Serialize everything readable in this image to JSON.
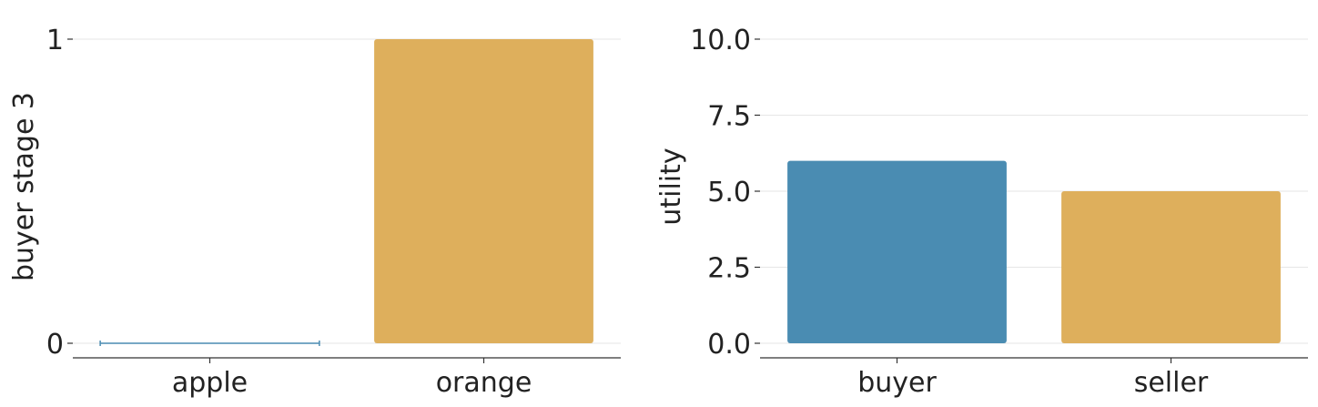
{
  "chart_data": [
    {
      "type": "bar",
      "categories": [
        "apple",
        "orange"
      ],
      "values": [
        0,
        1
      ],
      "colors": [
        "#4a8cb2",
        "#deaf5c"
      ],
      "ylabel": "buyer stage 3",
      "xlabel": "",
      "ylim": [
        0,
        1
      ],
      "yticks": [
        0,
        1
      ],
      "ytick_labels": [
        "0",
        "1"
      ],
      "grid": "horizontal"
    },
    {
      "type": "bar",
      "categories": [
        "buyer",
        "seller"
      ],
      "values": [
        6,
        5
      ],
      "colors": [
        "#4a8cb2",
        "#deaf5c"
      ],
      "ylabel": "utility",
      "xlabel": "",
      "ylim": [
        0,
        10
      ],
      "yticks": [
        0,
        2.5,
        5,
        7.5,
        10
      ],
      "ytick_labels": [
        "0.0",
        "2.5",
        "5.0",
        "7.5",
        "10.0"
      ],
      "grid": "horizontal"
    }
  ]
}
